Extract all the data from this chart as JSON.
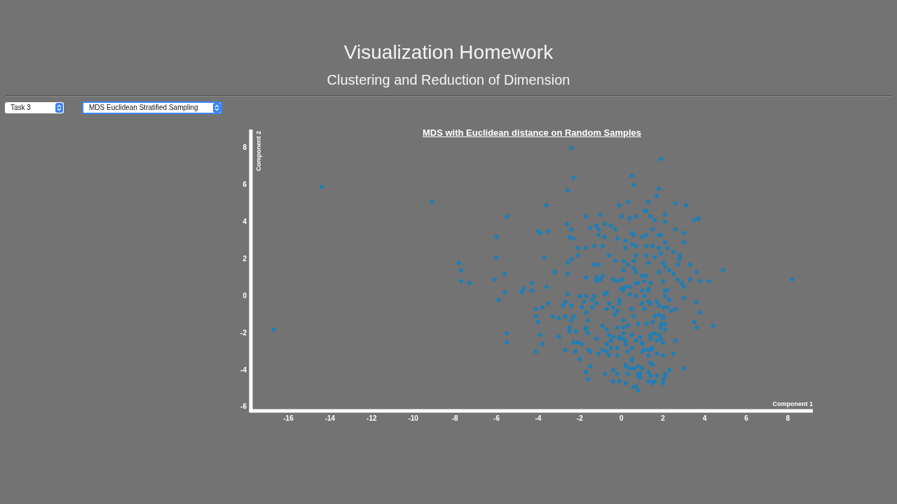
{
  "chart_data": {
    "type": "scatter",
    "title": "MDS with Euclidean distance on Random Samples",
    "xlabel": "Component 1",
    "ylabel": "Component 2",
    "annotations": [
      "Visualization Homework",
      "Clustering and Reduction of Dimension",
      "Task 3",
      "MDS Euclidean Stratified Sampling"
    ],
    "marker": "circle",
    "xlim": [
      -17.8,
      9.2
    ],
    "ylim": [
      -6.2,
      9
    ],
    "xticks": [
      -16,
      -14,
      -12,
      -10,
      -8,
      -6,
      -4,
      -2,
      0,
      2,
      4,
      6,
      8
    ],
    "yticks": [
      -6,
      -4,
      -2,
      0,
      2,
      4,
      6,
      8
    ],
    "series": [
      {
        "color": "#1f7fb6",
        "x": [
          -16.7,
          -14.4,
          -9.1,
          -7.8,
          -7.7,
          -7.7,
          -7.3,
          -6.0,
          -6.0,
          -5.5,
          -6.1,
          -5.6,
          -5.6,
          -5.9,
          -5.5,
          -5.5,
          8.2,
          4.9,
          4.2,
          4.4,
          -2.4,
          1.9,
          -2.3,
          0.5,
          0.6,
          -2.6,
          1.8,
          1.7,
          -3.6,
          1.3,
          -0.1,
          0.3,
          2.6,
          3.1,
          -1.7,
          -1.0,
          0.0,
          1.1,
          1.2,
          2.1,
          3.7,
          3.5,
          0.4,
          0.7,
          1.4,
          1.6,
          2.1,
          -4.0,
          -3.9,
          -3.5,
          -2.6,
          -2.4,
          -2.5,
          -2.3,
          -1.5,
          -1.2,
          -1.1,
          -0.8,
          -0.5,
          -0.3,
          -1.1,
          -0.8,
          -0.2,
          0.2,
          0.5,
          0.6,
          1.0,
          1.2,
          1.5,
          1.8,
          1.9,
          2.6,
          3.0,
          3.0,
          2.1,
          -2.1,
          -1.7,
          -1.3,
          -0.9,
          -2.1,
          -0.6,
          -0.3,
          0.2,
          0.5,
          0.7,
          1.2,
          1.5,
          1.8,
          2.2,
          2.5,
          0.7,
          1.2,
          1.6,
          1.9,
          2.8,
          2.8,
          -3.7,
          -2.6,
          -2.4,
          -1.3,
          -1.1,
          0.1,
          0.6,
          0.3,
          1.3,
          2.0,
          2.7,
          3.3,
          0.1,
          0.6,
          0.7,
          1.0,
          1.2,
          2.1,
          2.3,
          1.8,
          2.5,
          3.6,
          -3.2,
          -2.6,
          -4.3,
          -3.6,
          -4.7,
          -1.7,
          -1.2,
          -0.9,
          -1.2,
          -1.0,
          -0.4,
          -0.2,
          0.0,
          0.7,
          0.8,
          1.1,
          1.4,
          2.0,
          2.7,
          2.9,
          3.3,
          3.8,
          0.2,
          0.4,
          3.0,
          1.3,
          2.1,
          -4.8,
          -4.3,
          -4.1,
          -3.8,
          -3.5,
          -2.6,
          -2.8,
          -2.7,
          -2.4,
          -2.0,
          -1.7,
          -1.3,
          -1.8,
          -1.4,
          -1.2,
          -0.8,
          -0.7,
          -1.9,
          -1.4,
          -0.7,
          -0.6,
          -0.4,
          -0.1,
          -0.1,
          0.1,
          0.0,
          0.4,
          0.7,
          1.0,
          1.1,
          1.3,
          1.3,
          1.1,
          1.0,
          1.4,
          1.7,
          2.1,
          2.3,
          2.2,
          1.8,
          2.0,
          2.2,
          2.4,
          2.6,
          3.0,
          3.6,
          3.8,
          3.5,
          3.6,
          -4.1,
          -4.0,
          -3.9,
          -3.8,
          -4.1,
          -3.3,
          -3.0,
          -2.7,
          -3.0,
          -2.7,
          -2.4,
          -2.3,
          -2.5,
          -2.5,
          -2.2,
          -2.3,
          -2.1,
          -2.2,
          -1.9,
          -2.0,
          -1.7,
          -1.6,
          -1.7,
          -1.7,
          -1.6,
          -1.2,
          -1.6,
          -1.5,
          -1.1,
          -1.5,
          -1.7,
          -1.6,
          -0.9,
          -0.7,
          -0.6,
          -0.4,
          -0.5,
          -0.7,
          -0.9,
          -0.7,
          -0.6,
          -0.5,
          -0.8,
          -0.2,
          -0.2,
          -0.2,
          -0.3,
          -0.2,
          0.1,
          -0.1,
          -0.1,
          0.1,
          0.1,
          0.1,
          0.3,
          0.6,
          0.5,
          0.2,
          0.2,
          0.3,
          0.5,
          0.7,
          0.8,
          0.9,
          1.0,
          1.0,
          1.0,
          1.1,
          0.5,
          0.5,
          0.5,
          0.2,
          0.2,
          0.4,
          0.6,
          0.8,
          1.0,
          0.8,
          0.8,
          0.9,
          0.9,
          0.6,
          0.7,
          0.8,
          0.2,
          -0.1,
          -0.4,
          -0.4,
          -0.2,
          0.3,
          1.3,
          1.4,
          1.5,
          1.3,
          1.4,
          1.7,
          1.3,
          1.5,
          1.6,
          2.0,
          2.0,
          2.1,
          2.1,
          2.3,
          2.0,
          1.7,
          1.4,
          1.3,
          1.5,
          1.7,
          1.9,
          2.0,
          1.8,
          1.6,
          1.4,
          1.4,
          1.2,
          1.5,
          1.9,
          2.1,
          1.9,
          1.6,
          1.8,
          2.0,
          2.1,
          2.0,
          2.6,
          2.5,
          3.0
        ],
        "values": [
          -1.8,
          5.9,
          5.1,
          1.8,
          1.4,
          0.8,
          0.7,
          3.2,
          2.1,
          4.3,
          0.9,
          1.2,
          0.2,
          -0.2,
          -2.0,
          -2.5,
          0.9,
          1.4,
          0.8,
          -1.6,
          8.0,
          7.4,
          6.4,
          6.5,
          6.0,
          5.7,
          5.8,
          5.4,
          4.9,
          5.1,
          4.9,
          5.1,
          5.0,
          4.9,
          4.3,
          4.4,
          4.3,
          4.6,
          4.6,
          4.4,
          4.2,
          4.1,
          4.2,
          4.3,
          4.3,
          4.1,
          4.0,
          3.5,
          3.4,
          3.5,
          3.9,
          3.6,
          3.2,
          3.1,
          3.7,
          3.8,
          3.6,
          3.9,
          3.8,
          3.6,
          3.3,
          3.2,
          3.1,
          3.0,
          3.4,
          3.3,
          3.2,
          3.3,
          3.6,
          3.3,
          3.3,
          3.6,
          3.4,
          2.9,
          2.9,
          2.6,
          2.6,
          2.7,
          2.7,
          2.2,
          2.2,
          1.9,
          2.6,
          2.8,
          2.7,
          2.7,
          2.7,
          2.6,
          2.6,
          2.4,
          2.2,
          2.2,
          2.1,
          2.3,
          2.2,
          2.0,
          2.1,
          1.8,
          2.0,
          1.7,
          1.7,
          1.9,
          1.9,
          1.7,
          1.8,
          1.8,
          1.7,
          1.7,
          1.4,
          1.5,
          1.3,
          1.1,
          1.1,
          1.6,
          1.4,
          1.3,
          1.2,
          1.3,
          1.3,
          1.2,
          0.7,
          0.5,
          0.4,
          1.0,
          1.0,
          1.1,
          0.8,
          0.9,
          0.9,
          0.8,
          0.9,
          0.7,
          0.7,
          0.8,
          0.7,
          0.8,
          0.9,
          0.7,
          0.9,
          0.8,
          0.5,
          0.5,
          0.5,
          0.4,
          0.3,
          0.2,
          0.3,
          -0.7,
          -0.6,
          -0.4,
          0.1,
          -0.5,
          -0.3,
          -0.5,
          0.0,
          0.0,
          0.0,
          -0.3,
          -0.2,
          -0.4,
          0.1,
          0.2,
          -0.6,
          -0.6,
          -0.7,
          -0.4,
          -0.6,
          -0.4,
          -0.2,
          0.3,
          0.4,
          0.1,
          0.0,
          0.3,
          0.0,
          -0.3,
          0.3,
          -0.7,
          -0.4,
          -0.4,
          -0.3,
          0.0,
          -0.2,
          0.3,
          -0.5,
          -0.6,
          -0.6,
          -0.8,
          -0.7,
          -0.1,
          -0.3,
          -0.9,
          -1.4,
          -1.7,
          -1.1,
          -1.4,
          -2.1,
          -2.6,
          -3.0,
          -1.1,
          -1.2,
          -1.1,
          -2.2,
          -2.9,
          -1.3,
          -1.1,
          -1.7,
          -1.9,
          -1.9,
          -2.5,
          -2.5,
          -3.0,
          -2.6,
          -3.4,
          -0.9,
          -1.3,
          -1.7,
          -1.8,
          -2.0,
          -2.3,
          -2.9,
          -3.0,
          -3.1,
          -3.8,
          -4.1,
          -4.5,
          -1.6,
          -1.8,
          -2.1,
          -2.2,
          -2.4,
          -2.6,
          -2.9,
          -3.0,
          -3.2,
          -2.8,
          -4.2,
          -3.2,
          -2.8,
          -1.7,
          -1.0,
          -0.8,
          -1.3,
          -2.2,
          -2.3,
          -2.3,
          -2.0,
          -1.7,
          -1.6,
          -1.1,
          -0.7,
          -2.4,
          -2.6,
          -3.0,
          -2.1,
          -2.4,
          -1.5,
          -2.2,
          -2.5,
          -2.6,
          -3.0,
          -2.9,
          -2.8,
          -3.4,
          -3.5,
          -3.7,
          -3.8,
          -3.9,
          -3.9,
          -3.8,
          -3.9,
          -4.2,
          -4.3,
          -4.4,
          -4.2,
          -4.9,
          -4.9,
          -5.1,
          -4.7,
          -4.6,
          -4.6,
          -4.0,
          -4.2,
          -4.2,
          -3.2,
          -3.6,
          -3.7,
          -4.1,
          -4.3,
          -4.3,
          -4.6,
          -4.7,
          -4.6,
          -4.7,
          -4.5,
          -4.3,
          -4.2,
          -4.0,
          -3.2,
          -3.1,
          -2.9,
          -2.9,
          -2.8,
          -2.4,
          -2.3,
          -2.5,
          -2.1,
          -2.0,
          -2.1,
          -2.3,
          -1.5,
          -1.4,
          -1.5,
          -1.8,
          -1.7,
          -1.1,
          -1.0,
          -1.1,
          -1.5,
          -1.2,
          -2.4,
          -3.1,
          -3.9
        ]
      }
    ]
  }
}
